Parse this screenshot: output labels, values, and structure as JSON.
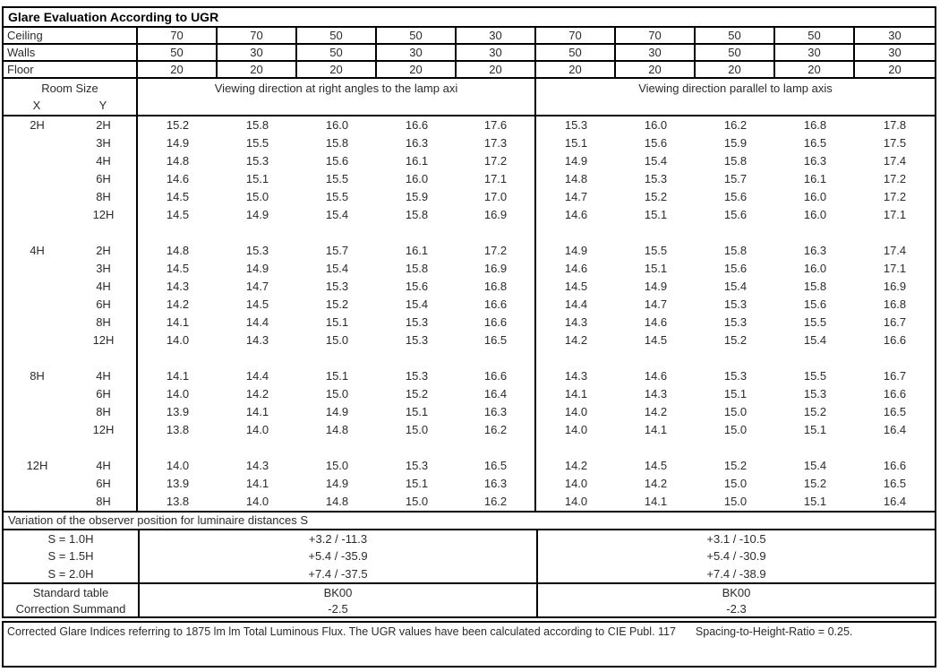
{
  "title": "Glare Evaluation According to UGR",
  "surface_rows": [
    {
      "label": "Ceiling",
      "values": [
        "70",
        "70",
        "50",
        "50",
        "30",
        "70",
        "70",
        "50",
        "50",
        "30"
      ]
    },
    {
      "label": "Walls",
      "values": [
        "50",
        "30",
        "50",
        "30",
        "30",
        "50",
        "30",
        "50",
        "30",
        "30"
      ]
    },
    {
      "label": "Floor",
      "values": [
        "20",
        "20",
        "20",
        "20",
        "20",
        "20",
        "20",
        "20",
        "20",
        "20"
      ]
    }
  ],
  "room_size": {
    "header": "Room Size",
    "x_label": "X",
    "y_label": "Y"
  },
  "viewing_headers": {
    "left": "Viewing direction at right angles to the lamp axi",
    "right": "Viewing direction parallel to lamp axis"
  },
  "ugr_blocks": [
    {
      "x": "2H",
      "rows": [
        {
          "y": "2H",
          "values": [
            "15.2",
            "15.8",
            "16.0",
            "16.6",
            "17.6",
            "15.3",
            "16.0",
            "16.2",
            "16.8",
            "17.8"
          ]
        },
        {
          "y": "3H",
          "values": [
            "14.9",
            "15.5",
            "15.8",
            "16.3",
            "17.3",
            "15.1",
            "15.6",
            "15.9",
            "16.5",
            "17.5"
          ]
        },
        {
          "y": "4H",
          "values": [
            "14.8",
            "15.3",
            "15.6",
            "16.1",
            "17.2",
            "14.9",
            "15.4",
            "15.8",
            "16.3",
            "17.4"
          ]
        },
        {
          "y": "6H",
          "values": [
            "14.6",
            "15.1",
            "15.5",
            "16.0",
            "17.1",
            "14.8",
            "15.3",
            "15.7",
            "16.1",
            "17.2"
          ]
        },
        {
          "y": "8H",
          "values": [
            "14.5",
            "15.0",
            "15.5",
            "15.9",
            "17.0",
            "14.7",
            "15.2",
            "15.6",
            "16.0",
            "17.2"
          ]
        },
        {
          "y": "12H",
          "values": [
            "14.5",
            "14.9",
            "15.4",
            "15.8",
            "16.9",
            "14.6",
            "15.1",
            "15.6",
            "16.0",
            "17.1"
          ]
        }
      ]
    },
    {
      "x": "4H",
      "rows": [
        {
          "y": "2H",
          "values": [
            "14.8",
            "15.3",
            "15.7",
            "16.1",
            "17.2",
            "14.9",
            "15.5",
            "15.8",
            "16.3",
            "17.4"
          ]
        },
        {
          "y": "3H",
          "values": [
            "14.5",
            "14.9",
            "15.4",
            "15.8",
            "16.9",
            "14.6",
            "15.1",
            "15.6",
            "16.0",
            "17.1"
          ]
        },
        {
          "y": "4H",
          "values": [
            "14.3",
            "14.7",
            "15.3",
            "15.6",
            "16.8",
            "14.5",
            "14.9",
            "15.4",
            "15.8",
            "16.9"
          ]
        },
        {
          "y": "6H",
          "values": [
            "14.2",
            "14.5",
            "15.2",
            "15.4",
            "16.6",
            "14.4",
            "14.7",
            "15.3",
            "15.6",
            "16.8"
          ]
        },
        {
          "y": "8H",
          "values": [
            "14.1",
            "14.4",
            "15.1",
            "15.3",
            "16.6",
            "14.3",
            "14.6",
            "15.3",
            "15.5",
            "16.7"
          ]
        },
        {
          "y": "12H",
          "values": [
            "14.0",
            "14.3",
            "15.0",
            "15.3",
            "16.5",
            "14.2",
            "14.5",
            "15.2",
            "15.4",
            "16.6"
          ]
        }
      ]
    },
    {
      "x": "8H",
      "rows": [
        {
          "y": "4H",
          "values": [
            "14.1",
            "14.4",
            "15.1",
            "15.3",
            "16.6",
            "14.3",
            "14.6",
            "15.3",
            "15.5",
            "16.7"
          ]
        },
        {
          "y": "6H",
          "values": [
            "14.0",
            "14.2",
            "15.0",
            "15.2",
            "16.4",
            "14.1",
            "14.3",
            "15.1",
            "15.3",
            "16.6"
          ]
        },
        {
          "y": "8H",
          "values": [
            "13.9",
            "14.1",
            "14.9",
            "15.1",
            "16.3",
            "14.0",
            "14.2",
            "15.0",
            "15.2",
            "16.5"
          ]
        },
        {
          "y": "12H",
          "values": [
            "13.8",
            "14.0",
            "14.8",
            "15.0",
            "16.2",
            "14.0",
            "14.1",
            "15.0",
            "15.1",
            "16.4"
          ]
        }
      ]
    },
    {
      "x": "12H",
      "rows": [
        {
          "y": "4H",
          "values": [
            "14.0",
            "14.3",
            "15.0",
            "15.3",
            "16.5",
            "14.2",
            "14.5",
            "15.2",
            "15.4",
            "16.6"
          ]
        },
        {
          "y": "6H",
          "values": [
            "13.9",
            "14.1",
            "14.9",
            "15.1",
            "16.3",
            "14.0",
            "14.2",
            "15.0",
            "15.2",
            "16.5"
          ]
        },
        {
          "y": "8H",
          "values": [
            "13.8",
            "14.0",
            "14.8",
            "15.0",
            "16.2",
            "14.0",
            "14.1",
            "15.0",
            "15.1",
            "16.4"
          ]
        }
      ]
    }
  ],
  "variation_title": "Variation of the observer position for luminaire distances S",
  "variation_rows": [
    {
      "label": "S = 1.0H",
      "left": "+3.2 / -11.3",
      "right": "+3.1 / -10.5"
    },
    {
      "label": "S = 1.5H",
      "left": "+5.4 / -35.9",
      "right": "+5.4 / -30.9"
    },
    {
      "label": "S = 2.0H",
      "left": "+7.4 / -37.5",
      "right": "+7.4 / -38.9"
    }
  ],
  "summary_rows": [
    {
      "label": "Standard table",
      "left": "BK00",
      "right": "BK00"
    },
    {
      "label": "Correction Summand",
      "left": "-2.5",
      "right": "-2.3"
    }
  ],
  "footer": {
    "text": "Corrected Glare Indices referring to 1875 lm lm Total Luminous Flux. The UGR values have been calculated according to CIE Publ. 117",
    "note": "Spacing-to-Height-Ratio = 0.25."
  }
}
